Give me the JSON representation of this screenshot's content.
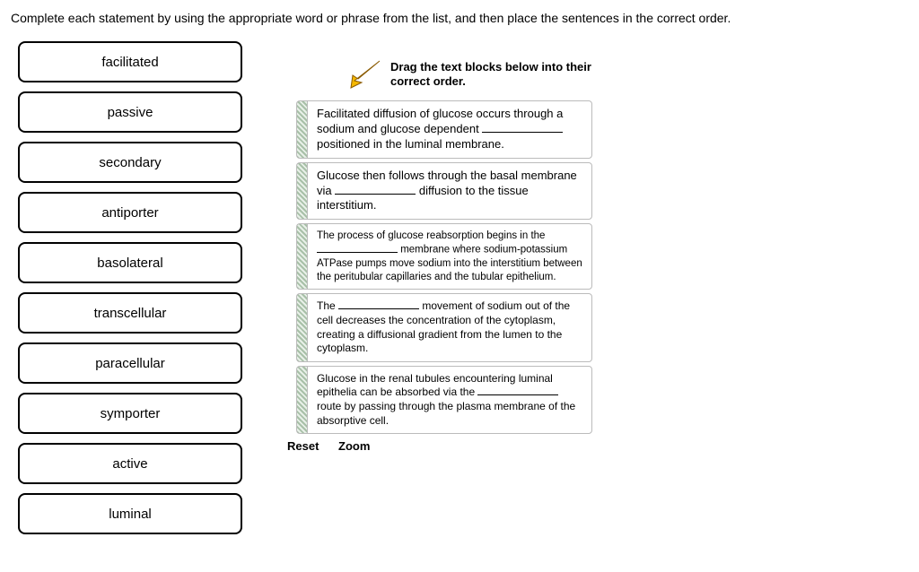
{
  "instructions": "Complete each statement by using the appropriate word or phrase from the list, and then place the sentences in the correct order.",
  "wordBank": [
    "facilitated",
    "passive",
    "secondary",
    "antiporter",
    "basolateral",
    "transcellular",
    "paracellular",
    "symporter",
    "active",
    "luminal"
  ],
  "dragHint": "Drag the text blocks below into their correct order.",
  "blocks": [
    {
      "size": "sz13",
      "pre": "Facilitated diffusion of glucose occurs through a sodium and glucose dependent ",
      "post": " positioned in the luminal membrane."
    },
    {
      "size": "sz13",
      "pre": "Glucose then follows through the basal membrane via ",
      "post": " diffusion to the tissue interstitium."
    },
    {
      "size": "sz11",
      "pre": "The process of glucose reabsorption begins in the ",
      "post": " membrane where sodium-potassium ATPase pumps move sodium into the interstitium between the peritubular capillaries and the tubular epithelium."
    },
    {
      "size": "sz12",
      "pre": "The ",
      "post": " movement of sodium out of the cell decreases the concentration of the cytoplasm, creating a diffusional gradient from the lumen to the cytoplasm."
    },
    {
      "size": "sz12",
      "pre": "Glucose in the renal tubules encountering luminal epithelia can be absorbed via the ",
      "post": " route by passing through the plasma membrane of the absorptive cell."
    }
  ],
  "controls": {
    "reset": "Reset",
    "zoom": "Zoom"
  },
  "colors": {
    "arrowFill": "#f5b800",
    "arrowStroke": "#8a5a00"
  }
}
